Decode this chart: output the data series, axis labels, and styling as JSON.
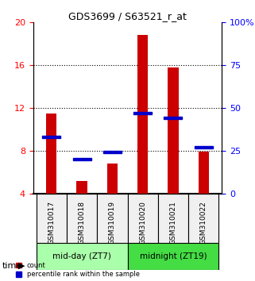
{
  "title": "GDS3699 / S63521_r_at",
  "categories": [
    "GSM310017",
    "GSM310018",
    "GSM310019",
    "GSM310020",
    "GSM310021",
    "GSM310022"
  ],
  "count_values": [
    11.5,
    5.2,
    6.8,
    18.8,
    15.8,
    7.9
  ],
  "percentile_values": [
    33,
    20,
    24,
    47,
    44,
    27
  ],
  "left_ylim": [
    4,
    20
  ],
  "right_ylim": [
    0,
    100
  ],
  "left_yticks": [
    4,
    8,
    12,
    16,
    20
  ],
  "right_yticks": [
    0,
    25,
    50,
    75,
    100
  ],
  "right_yticklabels": [
    "0",
    "25",
    "50",
    "75",
    "100%"
  ],
  "bar_color": "#cc0000",
  "square_color": "#0000cc",
  "bar_width": 0.35,
  "groups": [
    {
      "label": "mid-day (ZT7)",
      "indices": [
        0,
        1,
        2
      ],
      "color": "#aaffaa"
    },
    {
      "label": "midnight (ZT19)",
      "indices": [
        3,
        4,
        5
      ],
      "color": "#44dd44"
    }
  ],
  "time_label": "time",
  "xlabel_area_height": 0.22,
  "grid_color": "black",
  "grid_linestyle": "dotted",
  "bg_color": "#f0f0f0",
  "plot_bg": "white"
}
